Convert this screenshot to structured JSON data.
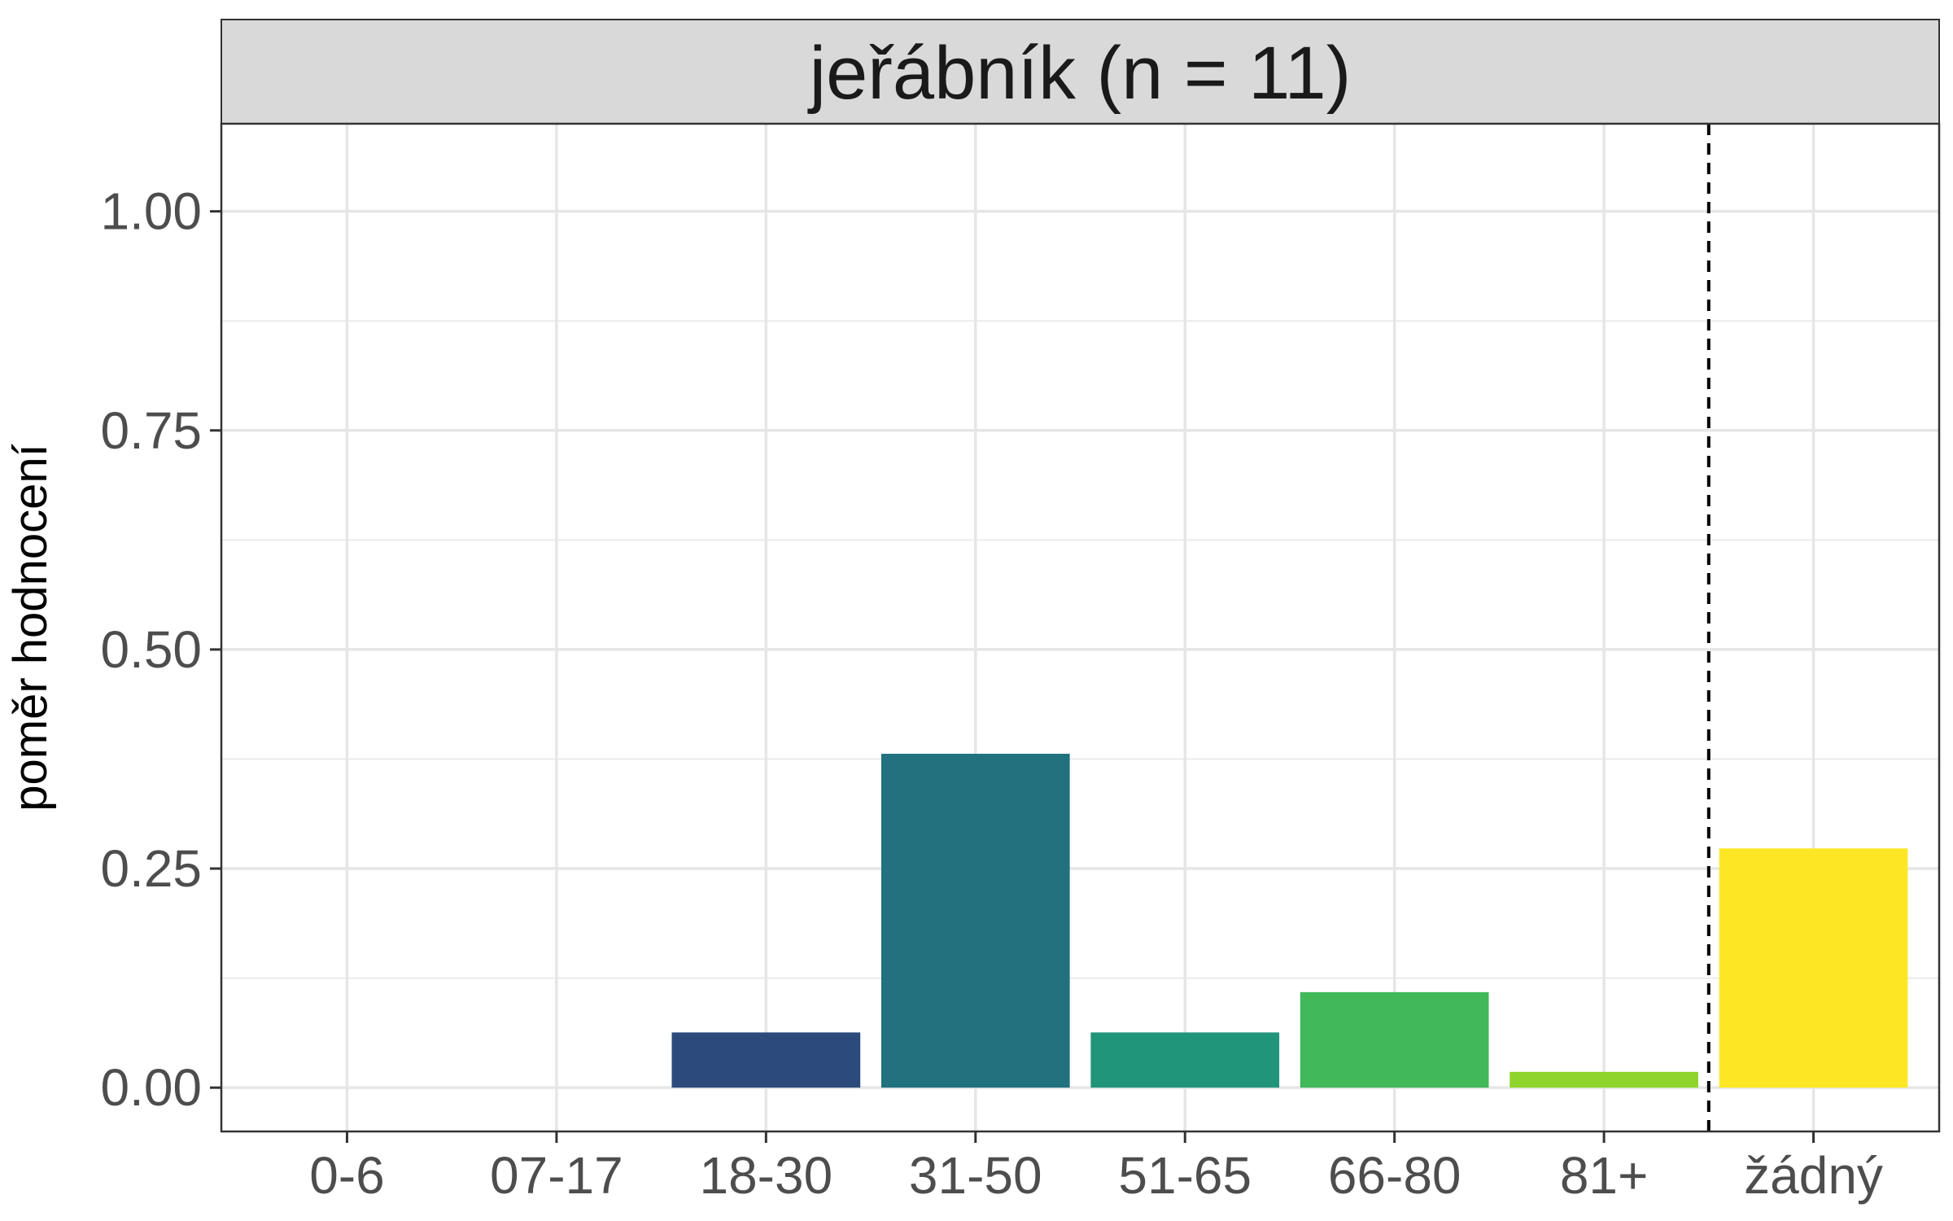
{
  "chart_data": {
    "type": "bar",
    "facet_label": "jeřábník (n = 11)",
    "ylabel": "poměr hodnocení",
    "xlabel": "",
    "categories": [
      "0-6",
      "07-17",
      "18-30",
      "31-50",
      "51-65",
      "66-80",
      "81+",
      "žádný"
    ],
    "values": [
      0,
      0,
      0.063,
      0.381,
      0.063,
      0.109,
      0.018,
      0.273
    ],
    "colors": [
      "#440154",
      "#46337E",
      "#2C4A7C",
      "#21717E",
      "#21957A",
      "#41B85A",
      "#8ED42C",
      "#FDE725"
    ],
    "ylim": [
      -0.05,
      1.1
    ],
    "yticks": [
      0,
      0.25,
      0.5,
      0.75,
      1.0
    ],
    "ytick_labels": [
      "0.00",
      "0.25",
      "0.50",
      "0.75",
      "1.00"
    ],
    "reference_line": {
      "between": [
        "81+",
        "žádný"
      ],
      "style": "dashed"
    },
    "grid": true,
    "legend": "none"
  }
}
